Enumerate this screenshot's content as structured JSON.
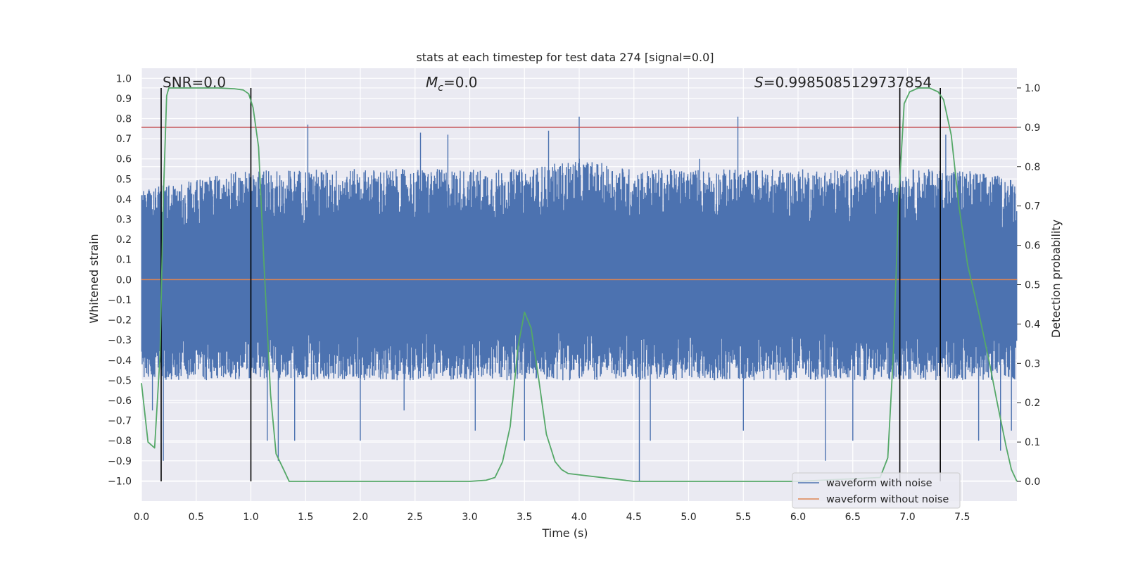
{
  "chart_data": {
    "type": "line",
    "title": "stats at each timestep for test data 274 [signal=0.0]",
    "xlabel": "Time (s)",
    "ylabel": "Whitened strain",
    "y2label": "Detection probability",
    "xlim": [
      0,
      8
    ],
    "ylim": [
      -1.1,
      1.05
    ],
    "y2lim": [
      -0.05,
      1.05
    ],
    "xticks": [
      "0.0",
      "0.5",
      "1.0",
      "1.5",
      "2.0",
      "2.5",
      "3.0",
      "3.5",
      "4.0",
      "4.5",
      "5.0",
      "5.5",
      "6.0",
      "6.5",
      "7.0",
      "7.5"
    ],
    "yticks": [
      "1.0",
      "0.9",
      "0.8",
      "0.7",
      "0.6",
      "0.5",
      "0.4",
      "0.3",
      "0.2",
      "0.1",
      "0.0",
      "-0.1",
      "-0.2",
      "-0.3",
      "-0.4",
      "-0.5",
      "-0.6",
      "-0.7",
      "-0.8",
      "-0.9",
      "-1.0"
    ],
    "y2ticks": [
      "1.0",
      "0.9",
      "0.8",
      "0.7",
      "0.6",
      "0.5",
      "0.4",
      "0.3",
      "0.2",
      "0.1",
      "0.0"
    ],
    "grid": true,
    "legend_position": "lower-right",
    "annotations": {
      "snr": "SNR=0.0",
      "mc_symbol": "M",
      "mc_sub": "c",
      "mc_value": "=0.0",
      "s_symbol": "S",
      "s_value": "=0.9985085129737854"
    },
    "threshold_y2": 0.9,
    "noisy_envelope": {
      "times": [
        0,
        0.5,
        1,
        1.5,
        2,
        2.5,
        3,
        3.5,
        4,
        4.5,
        5,
        5.5,
        6,
        6.5,
        7,
        7.5,
        8
      ],
      "upper": [
        0.45,
        0.5,
        0.55,
        0.55,
        0.55,
        0.55,
        0.55,
        0.55,
        0.6,
        0.55,
        0.55,
        0.55,
        0.55,
        0.55,
        0.55,
        0.55,
        0.5
      ],
      "lower": [
        -0.5,
        -0.5,
        -0.5,
        -0.5,
        -0.5,
        -0.5,
        -0.5,
        -0.5,
        -0.5,
        -0.5,
        -0.5,
        -0.5,
        -0.5,
        -0.5,
        -0.5,
        -0.5,
        -0.5
      ],
      "spikes": [
        [
          0.2,
          -0.9
        ],
        [
          0.1,
          -0.65
        ],
        [
          1.15,
          -0.8
        ],
        [
          1.25,
          -0.9
        ],
        [
          1.4,
          -0.8
        ],
        [
          1.52,
          0.77
        ],
        [
          2.0,
          -0.8
        ],
        [
          2.4,
          -0.65
        ],
        [
          2.55,
          0.73
        ],
        [
          2.8,
          0.72
        ],
        [
          3.05,
          -0.75
        ],
        [
          3.5,
          -0.8
        ],
        [
          3.72,
          0.74
        ],
        [
          4.0,
          0.81
        ],
        [
          4.55,
          -1.0
        ],
        [
          4.65,
          -0.8
        ],
        [
          5.1,
          0.6
        ],
        [
          5.45,
          0.81
        ],
        [
          5.5,
          -0.75
        ],
        [
          6.25,
          -0.9
        ],
        [
          6.5,
          -0.8
        ],
        [
          7.35,
          0.72
        ],
        [
          7.65,
          -0.8
        ],
        [
          7.85,
          -0.85
        ],
        [
          7.95,
          -0.75
        ]
      ]
    },
    "series": [
      {
        "name": "waveform with noise",
        "color": "#4c72b0"
      },
      {
        "name": "waveform without noise",
        "color": "#dd8452",
        "x": [
          0,
          8
        ],
        "y": [
          0,
          0
        ]
      },
      {
        "color": "#55a868",
        "x": [
          0.0,
          0.06,
          0.12,
          0.17,
          0.2,
          0.23,
          0.25,
          0.3,
          0.5,
          0.7,
          0.85,
          0.93,
          0.98,
          1.02,
          1.07,
          1.12,
          1.18,
          1.23,
          1.3,
          1.35,
          1.5,
          2.0,
          2.5,
          3.0,
          3.15,
          3.23,
          3.3,
          3.37,
          3.44,
          3.5,
          3.56,
          3.63,
          3.7,
          3.78,
          3.84,
          3.9,
          4.5,
          5.0,
          6.0,
          6.75,
          6.82,
          6.87,
          6.92,
          6.97,
          7.02,
          7.1,
          7.2,
          7.28,
          7.33,
          7.4,
          7.47,
          7.55,
          7.65,
          7.75,
          7.82,
          7.9,
          7.95,
          8.0
        ],
        "y": [
          0.25,
          0.1,
          0.085,
          0.32,
          0.72,
          0.98,
          1.0,
          1.0,
          1.0,
          1.0,
          0.998,
          0.995,
          0.985,
          0.95,
          0.85,
          0.55,
          0.22,
          0.07,
          0.03,
          0.0,
          0.0,
          0.0,
          0.0,
          0.0,
          0.003,
          0.01,
          0.05,
          0.14,
          0.34,
          0.43,
          0.39,
          0.26,
          0.12,
          0.05,
          0.03,
          0.02,
          0.0,
          0.0,
          0.0,
          0.01,
          0.06,
          0.32,
          0.72,
          0.96,
          0.99,
          1.0,
          1.0,
          0.99,
          0.97,
          0.88,
          0.7,
          0.55,
          0.43,
          0.3,
          0.2,
          0.09,
          0.03,
          0.0
        ]
      }
    ],
    "vertical_markers_x": [
      0.18,
      1.0,
      6.93,
      7.3
    ]
  }
}
